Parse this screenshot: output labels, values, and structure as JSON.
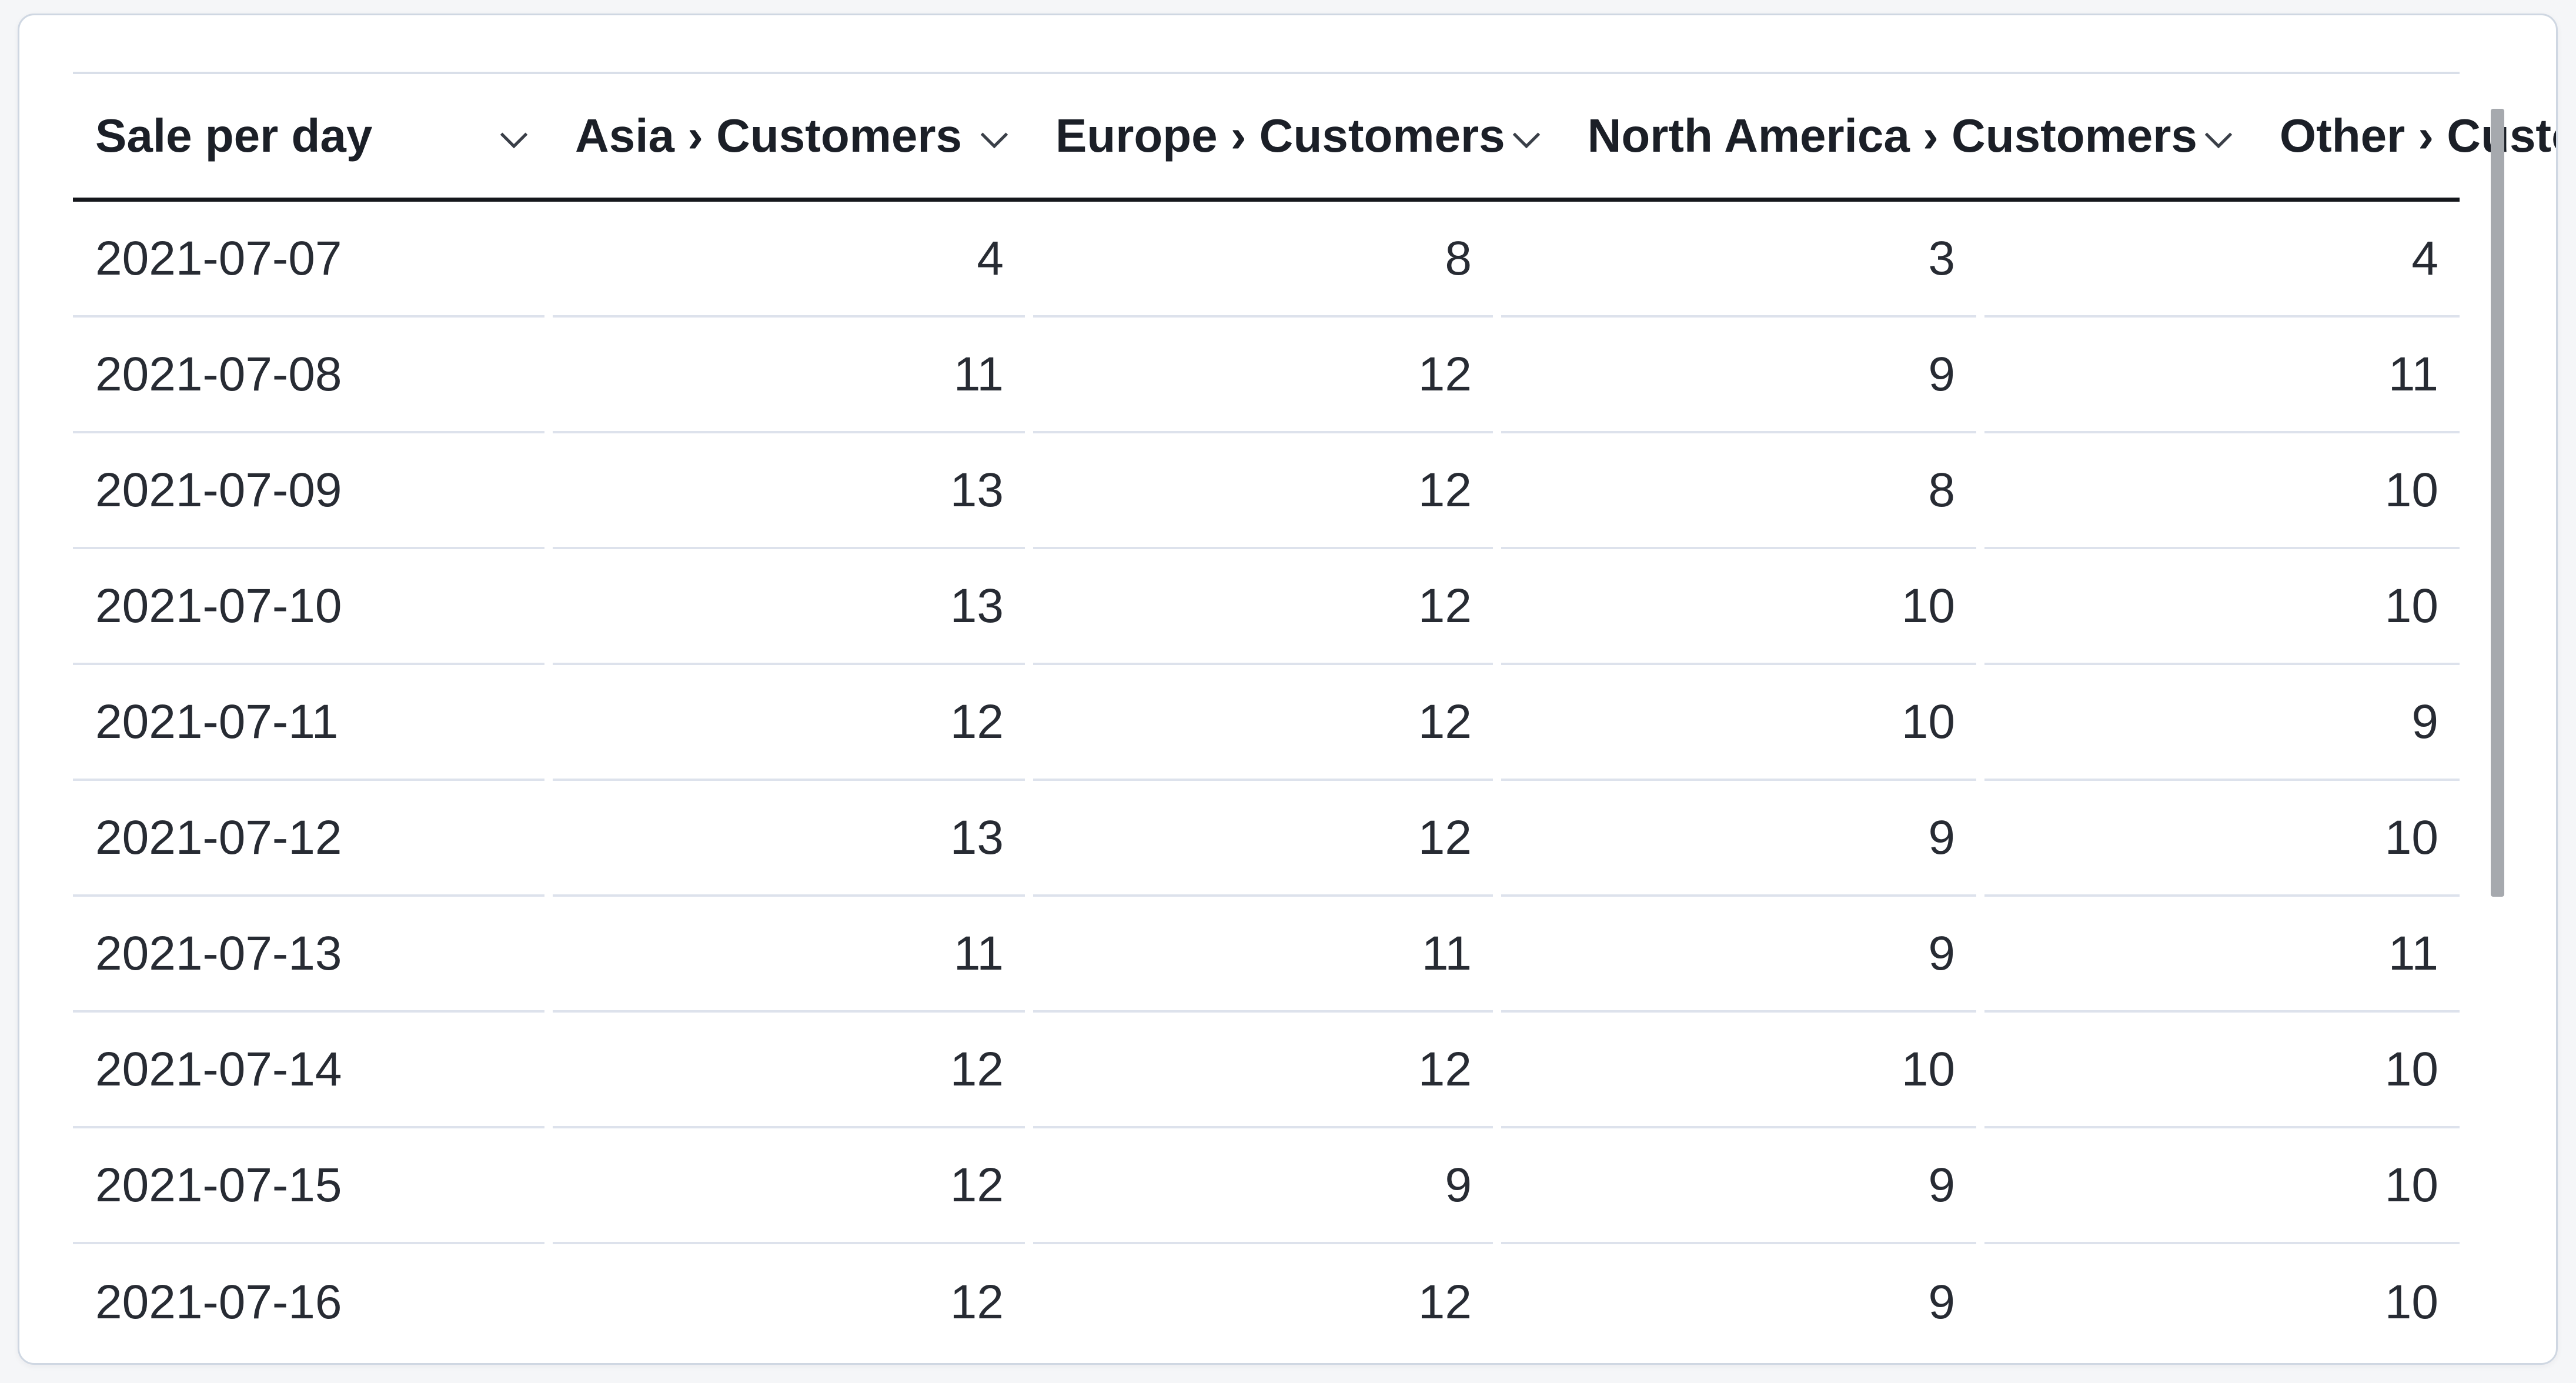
{
  "table": {
    "title": "Sale per day",
    "columns": [
      {
        "label": "Sale per day",
        "align": "left",
        "sort_icon": "chevron-down-icon"
      },
      {
        "label": "Asia › Customers",
        "align": "right",
        "sort_icon": "chevron-down-icon"
      },
      {
        "label": "Europe › Customers",
        "align": "right",
        "sort_icon": "chevron-down-icon"
      },
      {
        "label": "North America › Customers",
        "align": "right",
        "sort_icon": "chevron-down-icon"
      },
      {
        "label": "Other › Customers",
        "align": "right",
        "sort_icon": "chevron-down-icon"
      }
    ],
    "rows": [
      [
        "2021-07-07",
        "4",
        "8",
        "3",
        "4"
      ],
      [
        "2021-07-08",
        "11",
        "12",
        "9",
        "11"
      ],
      [
        "2021-07-09",
        "13",
        "12",
        "8",
        "10"
      ],
      [
        "2021-07-10",
        "13",
        "12",
        "10",
        "10"
      ],
      [
        "2021-07-11",
        "12",
        "12",
        "10",
        "9"
      ],
      [
        "2021-07-12",
        "13",
        "12",
        "9",
        "10"
      ],
      [
        "2021-07-13",
        "11",
        "11",
        "9",
        "11"
      ],
      [
        "2021-07-14",
        "12",
        "12",
        "10",
        "10"
      ],
      [
        "2021-07-15",
        "12",
        "9",
        "9",
        "10"
      ],
      [
        "2021-07-16",
        "12",
        "12",
        "9",
        "10"
      ]
    ]
  },
  "scrollbar": {
    "visible": true
  },
  "colors": {
    "page_background": "#f5f6f8",
    "card_background": "#ffffff",
    "card_border": "#cfd7e2",
    "header_text": "#1b1f27",
    "cell_text": "#272b33",
    "header_rule": "#15171c",
    "row_separator": "#dde2ec",
    "top_rule": "#d9dfe9",
    "scroll_thumb": "#a6a9ae"
  },
  "chart_data": {
    "type": "table",
    "title": "Sale per day",
    "categories": [
      "2021-07-07",
      "2021-07-08",
      "2021-07-09",
      "2021-07-10",
      "2021-07-11",
      "2021-07-12",
      "2021-07-13",
      "2021-07-14",
      "2021-07-15",
      "2021-07-16"
    ],
    "series": [
      {
        "name": "Asia › Customers",
        "values": [
          4,
          11,
          13,
          13,
          12,
          13,
          11,
          12,
          12,
          12
        ]
      },
      {
        "name": "Europe › Customers",
        "values": [
          8,
          12,
          12,
          12,
          12,
          12,
          11,
          12,
          9,
          12
        ]
      },
      {
        "name": "North America › Customers",
        "values": [
          3,
          9,
          8,
          10,
          10,
          9,
          9,
          10,
          9,
          9
        ]
      },
      {
        "name": "Other › Customers",
        "values": [
          4,
          11,
          10,
          10,
          9,
          10,
          11,
          10,
          10,
          10
        ]
      }
    ]
  }
}
